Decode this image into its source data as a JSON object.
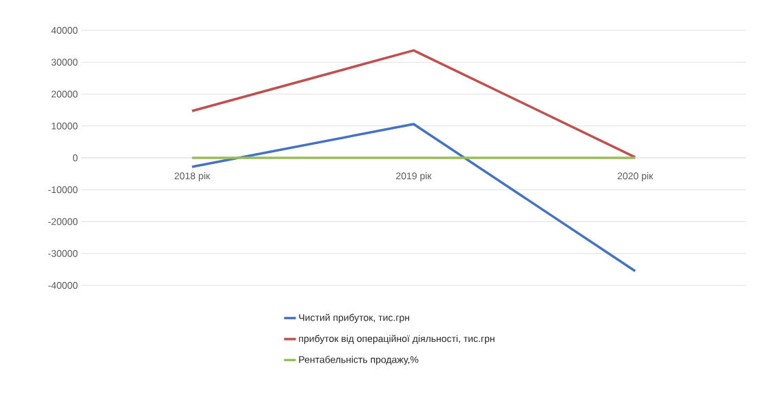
{
  "chart_data": {
    "type": "line",
    "categories": [
      "2018 рік",
      "2019 рік",
      "2020 рік"
    ],
    "series": [
      {
        "name": "Чистий прибуток, тис.грн",
        "color": "#4472c4",
        "values": [
          -2800,
          10600,
          -35500
        ]
      },
      {
        "name": "прибуток від операційної діяльності, тис.грн",
        "color": "#c0504d",
        "values": [
          14700,
          33700,
          200
        ]
      },
      {
        "name": "Рентабельність продажу,%",
        "color": "#9bbb59",
        "values": [
          0,
          0,
          0
        ]
      }
    ],
    "ylim": [
      -40000,
      40000
    ],
    "yticks": [
      -40000,
      -30000,
      -20000,
      -10000,
      0,
      10000,
      20000,
      30000,
      40000
    ],
    "grid": "y",
    "legend": "bottom",
    "marker": "none",
    "line_style": "solid"
  }
}
